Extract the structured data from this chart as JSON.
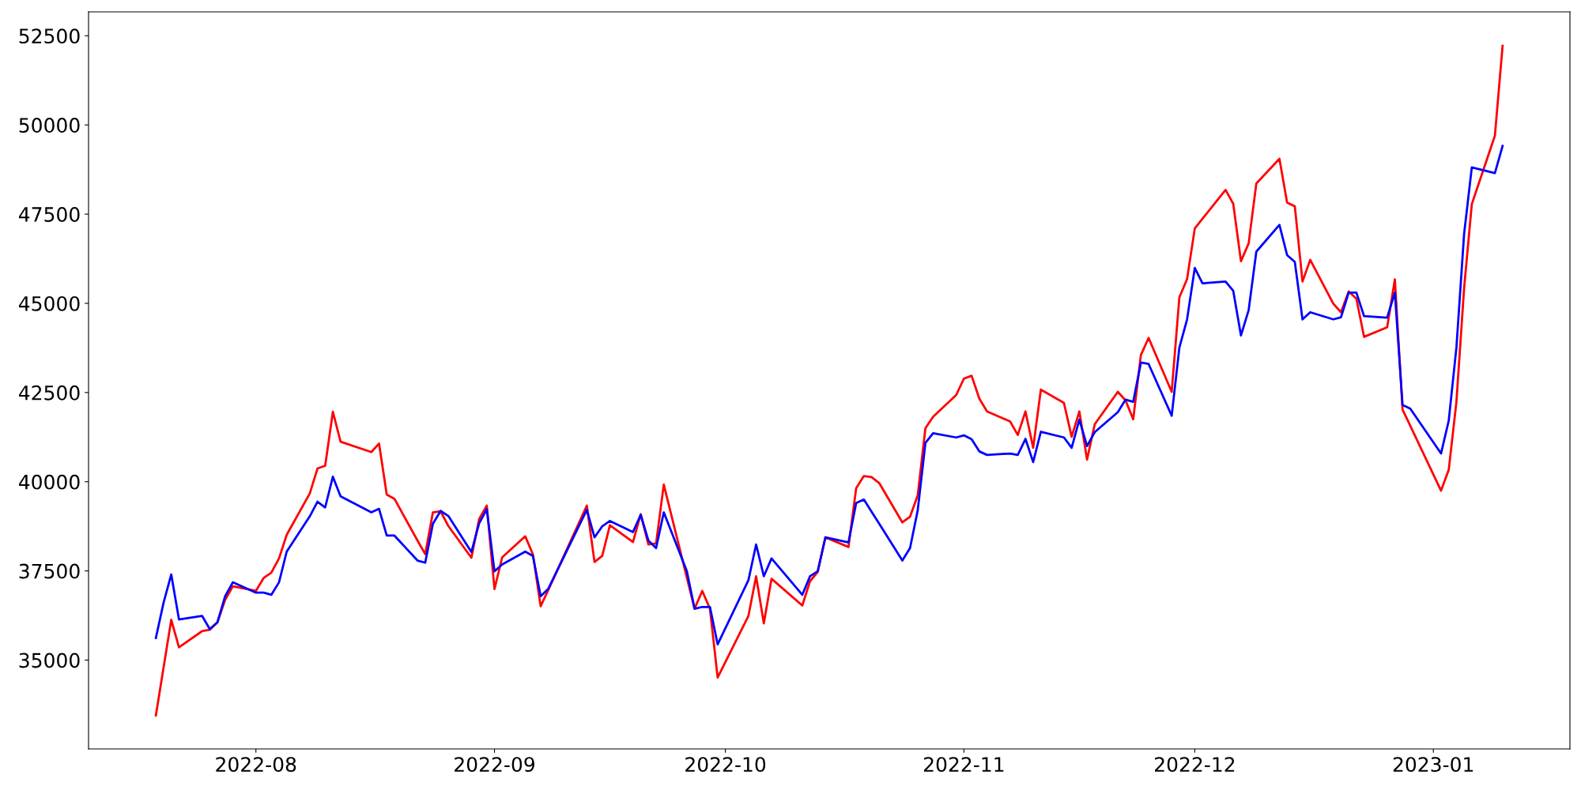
{
  "chart_data": {
    "type": "line",
    "x": [
      "2022-07-19",
      "2022-07-20",
      "2022-07-21",
      "2022-07-22",
      "2022-07-25",
      "2022-07-26",
      "2022-07-27",
      "2022-07-28",
      "2022-07-29",
      "2022-08-01",
      "2022-08-02",
      "2022-08-03",
      "2022-08-04",
      "2022-08-05",
      "2022-08-08",
      "2022-08-09",
      "2022-08-10",
      "2022-08-11",
      "2022-08-12",
      "2022-08-16",
      "2022-08-17",
      "2022-08-18",
      "2022-08-19",
      "2022-08-22",
      "2022-08-23",
      "2022-08-24",
      "2022-08-25",
      "2022-08-26",
      "2022-08-29",
      "2022-08-30",
      "2022-08-31",
      "2022-09-01",
      "2022-09-02",
      "2022-09-05",
      "2022-09-06",
      "2022-09-07",
      "2022-09-08",
      "2022-09-13",
      "2022-09-14",
      "2022-09-15",
      "2022-09-16",
      "2022-09-19",
      "2022-09-20",
      "2022-09-21",
      "2022-09-22",
      "2022-09-23",
      "2022-09-26",
      "2022-09-27",
      "2022-09-28",
      "2022-09-29",
      "2022-09-30",
      "2022-10-04",
      "2022-10-05",
      "2022-10-06",
      "2022-10-07",
      "2022-10-11",
      "2022-10-12",
      "2022-10-13",
      "2022-10-14",
      "2022-10-17",
      "2022-10-18",
      "2022-10-19",
      "2022-10-20",
      "2022-10-21",
      "2022-10-24",
      "2022-10-25",
      "2022-10-26",
      "2022-10-27",
      "2022-10-28",
      "2022-10-31",
      "2022-11-01",
      "2022-11-02",
      "2022-11-03",
      "2022-11-04",
      "2022-11-07",
      "2022-11-08",
      "2022-11-09",
      "2022-11-10",
      "2022-11-11",
      "2022-11-14",
      "2022-11-15",
      "2022-11-16",
      "2022-11-17",
      "2022-11-18",
      "2022-11-21",
      "2022-11-22",
      "2022-11-23",
      "2022-11-24",
      "2022-11-25",
      "2022-11-28",
      "2022-11-29",
      "2022-11-30",
      "2022-12-01",
      "2022-12-02",
      "2022-12-05",
      "2022-12-06",
      "2022-12-07",
      "2022-12-08",
      "2022-12-09",
      "2022-12-12",
      "2022-12-13",
      "2022-12-14",
      "2022-12-15",
      "2022-12-16",
      "2022-12-19",
      "2022-12-20",
      "2022-12-21",
      "2022-12-22",
      "2022-12-23",
      "2022-12-26",
      "2022-12-27",
      "2022-12-28",
      "2022-12-29",
      "2023-01-02",
      "2023-01-03",
      "2023-01-04",
      "2023-01-05",
      "2023-01-06",
      "2023-01-09",
      "2023-01-10"
    ],
    "series": [
      {
        "color": "#ff0000",
        "values": [
          33450,
          34790,
          36130,
          35360,
          35810,
          35850,
          36060,
          36690,
          37070,
          36940,
          37300,
          37450,
          37850,
          38510,
          39670,
          40370,
          40450,
          41960,
          41120,
          40830,
          41070,
          39640,
          39520,
          38350,
          37970,
          39140,
          39170,
          38760,
          37870,
          38950,
          39330,
          36990,
          37880,
          38470,
          37960,
          36510,
          36970,
          39330,
          37750,
          37920,
          38780,
          38310,
          39090,
          38240,
          38270,
          39920,
          37310,
          36440,
          36940,
          36440,
          34510,
          36240,
          37350,
          36030,
          37280,
          36530,
          37210,
          37470,
          38440,
          38170,
          39820,
          40160,
          40130,
          39960,
          38860,
          39020,
          39620,
          41500,
          41820,
          42430,
          42890,
          42970,
          42330,
          41970,
          41690,
          41310,
          41970,
          40950,
          42580,
          42210,
          41260,
          41970,
          40620,
          41610,
          42520,
          42280,
          41750,
          43550,
          44030,
          42520,
          45170,
          45680,
          47100,
          47370,
          48180,
          47790,
          46180,
          46680,
          48360,
          49050,
          47820,
          47720,
          45610,
          46220,
          44990,
          44750,
          45330,
          45130,
          44060,
          44330,
          45670,
          42020,
          41570,
          39750,
          40330,
          42240,
          45430,
          47780,
          49700,
          52220
        ]
      },
      {
        "color": "#0000ff",
        "values": [
          35620,
          36610,
          37400,
          36140,
          36240,
          35870,
          36060,
          36790,
          37180,
          36890,
          36890,
          36830,
          37180,
          38040,
          39030,
          39440,
          39280,
          40140,
          39590,
          39140,
          39240,
          38490,
          38490,
          37790,
          37730,
          38820,
          39180,
          39040,
          38030,
          38830,
          39230,
          37490,
          37680,
          38040,
          37920,
          36790,
          37000,
          39210,
          38440,
          38750,
          38900,
          38590,
          39070,
          38350,
          38140,
          39140,
          37490,
          36440,
          36490,
          36490,
          35440,
          37240,
          38240,
          37350,
          37850,
          36830,
          37350,
          37490,
          38440,
          38300,
          39400,
          39500,
          39160,
          38820,
          37790,
          38140,
          39200,
          41090,
          41360,
          41240,
          41300,
          41190,
          40850,
          40750,
          40790,
          40750,
          41200,
          40550,
          41400,
          41240,
          40950,
          41740,
          41000,
          41390,
          41950,
          42300,
          42240,
          43340,
          43300,
          41850,
          43760,
          44550,
          45990,
          45560,
          45610,
          45350,
          44100,
          44810,
          46450,
          47200,
          46350,
          46160,
          44550,
          44750,
          44550,
          44610,
          45300,
          45300,
          44640,
          44600,
          45300,
          42150,
          42050,
          40790,
          41710,
          43760,
          46950,
          48810,
          48650,
          49410
        ]
      }
    ],
    "xlim": [
      "2022-07-10T06:00",
      "2023-01-18T18:00"
    ],
    "xticks": [
      "2022-08",
      "2022-09",
      "2022-10",
      "2022-11",
      "2022-12",
      "2023-01"
    ],
    "ylim": [
      32510,
      53170
    ],
    "yticks": [
      35000,
      37500,
      40000,
      42500,
      45000,
      47500,
      50000,
      52500
    ],
    "grid": false,
    "marker": "none",
    "line_style": "solid"
  }
}
